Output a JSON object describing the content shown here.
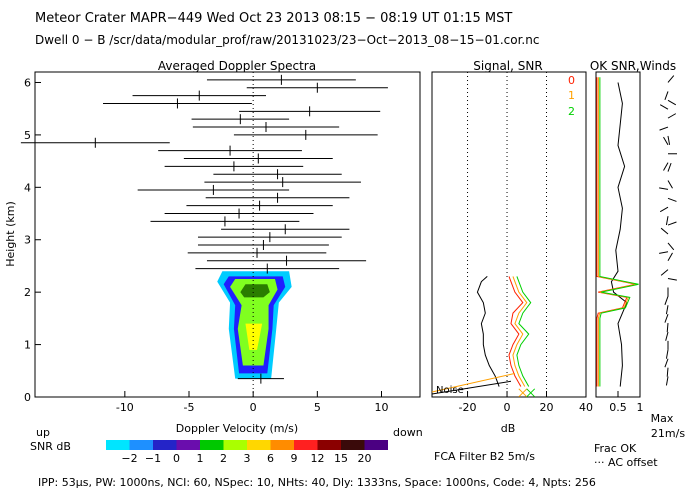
{
  "header": {
    "line1": "Meteor Crater  MAPR−449  Wed Oct 23 2013 08:15 − 08:19 UT 01:15 MST",
    "line2": "Dwell  0 −  B   /scr/data/modular_prof/raw/20131023/23−Oct−2013_08−15−01.cor.nc"
  },
  "footer": {
    "params": "IPP:  53µs,  PW: 1000ns,  NCI:  60,  NSpec: 10,  NHts: 40,  Dly: 1333ns,  Space: 1000ns,  Code: 4,  Npts: 256",
    "filter": "FCA Filter B2   5m/s"
  },
  "colors": {
    "snr_scale": [
      "#00e5ff",
      "#1e90ff",
      "#2424c8",
      "#6a0dad",
      "#00c800",
      "#aaff00",
      "#ffd700",
      "#ff8c00",
      "#ff2020",
      "#8b0000",
      "#3a0a0a",
      "#4b0082"
    ],
    "contour_outer": "#00ccff",
    "contour_mid": "#2020ff",
    "contour_inner": "#80ff20",
    "contour_core": "#ffff00",
    "line_red": "#ff2000",
    "line_orange": "#ffa000",
    "line_green": "#00d000"
  },
  "chart_data": [
    {
      "type": "scatter",
      "title": "Averaged Doppler Spectra",
      "xlabel": "Doppler Velocity (m/s)",
      "ylabel": "Height (km)",
      "xlim": [
        -17,
        13
      ],
      "ylim": [
        0,
        6.2
      ],
      "xticks": [
        -10,
        -5,
        0,
        5,
        10
      ],
      "yticks": [
        0,
        1,
        2,
        3,
        4,
        5,
        6
      ],
      "label_up": "up",
      "label_down": "down",
      "snr_label": "SNR dB",
      "snr_ticks": [
        "−2",
        "−1",
        "0",
        "1",
        "2",
        "3",
        "6",
        "9",
        "12",
        "15",
        "20"
      ],
      "series": [
        {
          "name": "spectral moments (height km, center m/s, half-width m/s)",
          "heights": [
            6.05,
            5.9,
            5.75,
            5.6,
            5.45,
            5.3,
            5.15,
            5.0,
            4.85,
            4.7,
            4.55,
            4.4,
            4.25,
            4.1,
            3.95,
            3.8,
            3.65,
            3.5,
            3.35,
            3.2,
            3.05,
            2.9,
            2.75,
            2.6,
            2.45,
            0.35
          ],
          "centers": [
            2.2,
            5.0,
            -4.2,
            -5.9,
            4.4,
            -1.0,
            1.0,
            4.1,
            -12.3,
            -1.8,
            0.4,
            -1.5,
            1.9,
            2.3,
            -3.1,
            1.9,
            0.5,
            -1.1,
            -2.2,
            2.5,
            1.3,
            0.8,
            0.3,
            2.6,
            1.1,
            0.6
          ],
          "halfwidths": [
            5.8,
            5.5,
            5.2,
            5.8,
            5.5,
            3.8,
            5.7,
            5.6,
            5.8,
            5.6,
            5.8,
            5.4,
            5.0,
            6.1,
            5.9,
            5.6,
            5.7,
            5.8,
            5.8,
            5.0,
            5.6,
            5.1,
            5.4,
            6.2,
            5.6,
            1.8
          ]
        }
      ]
    },
    {
      "type": "line",
      "title": "Signal, SNR",
      "xlabel": "dB",
      "xlim": [
        -38,
        40
      ],
      "ylim": [
        0,
        6.2
      ],
      "xticks": [
        -20,
        0,
        20,
        40
      ],
      "noise_label": "Noise",
      "heights": [
        0.2,
        0.4,
        0.6,
        0.8,
        1.0,
        1.2,
        1.4,
        1.6,
        1.8,
        2.0,
        2.2,
        2.3
      ],
      "signal_black": [
        -4,
        -6,
        -9,
        -11,
        -12,
        -12,
        -13,
        -11,
        -12,
        -15,
        -13,
        -10
      ],
      "snr_red": [
        7,
        4,
        2,
        1,
        3,
        6,
        2,
        3,
        8,
        4,
        2,
        1
      ],
      "snr_orange": [
        9,
        6,
        4,
        3,
        5,
        8,
        4,
        6,
        10,
        6,
        4,
        3
      ],
      "snr_green": [
        11,
        8,
        6,
        5,
        7,
        11,
        6,
        8,
        12,
        8,
        6,
        5
      ]
    },
    {
      "type": "line",
      "title": "OK SNR,Winds",
      "legend": [
        "0",
        "1",
        "2"
      ],
      "xticks": [
        "0.5",
        "1"
      ],
      "xlabel": "Frac OK",
      "xlabel2": "··· AC offset",
      "max_label": "Max",
      "max_value": "21m/s",
      "heights": [
        0.2,
        0.6,
        1.0,
        1.4,
        1.8,
        2.0,
        2.2,
        2.4,
        2.8,
        3.2,
        3.6,
        4.0,
        4.4,
        4.8,
        5.2,
        5.6,
        6.0
      ],
      "frac_ok": [
        0.55,
        0.6,
        0.58,
        0.5,
        0.7,
        0.4,
        0.35,
        0.5,
        0.45,
        0.55,
        0.6,
        0.5,
        0.65,
        0.5,
        0.55,
        0.6,
        0.5
      ]
    }
  ]
}
